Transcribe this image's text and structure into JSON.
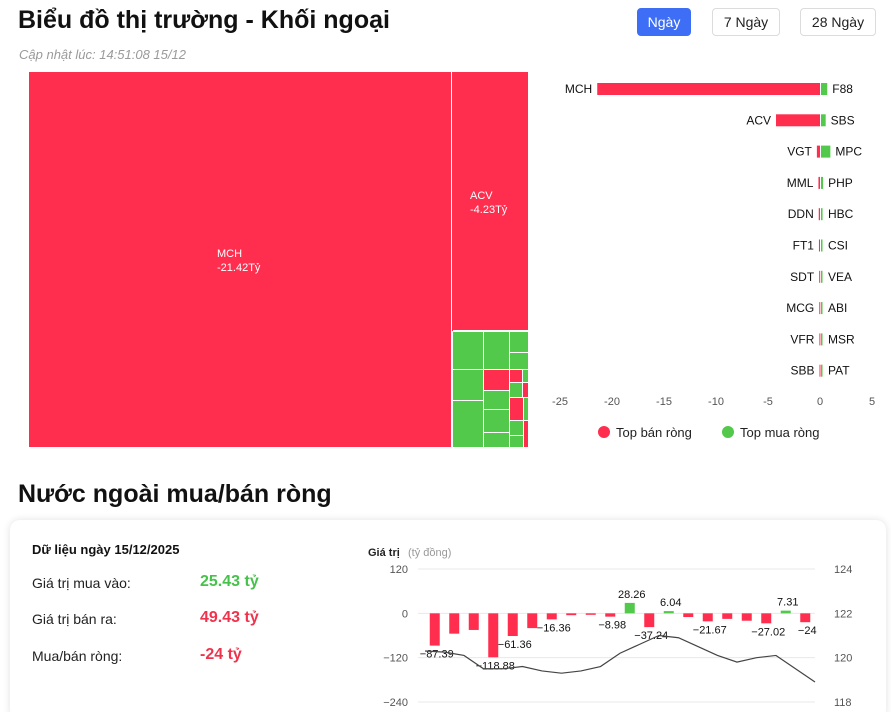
{
  "header": {
    "title": "Biểu đồ thị trường - Khối ngoại",
    "updated": "Cập nhật lúc: 14:51:08 15/12"
  },
  "range_tabs": [
    {
      "label": "Ngày",
      "active": true
    },
    {
      "label": "7 Ngày",
      "active": false
    },
    {
      "label": "28 Ngày",
      "active": false
    }
  ],
  "treemap": {
    "cells": [
      {
        "symbol": "MCH",
        "value": "-21.42Tỷ"
      },
      {
        "symbol": "ACV",
        "value": "-4.23Tỷ"
      }
    ]
  },
  "colors": {
    "sell": "#ff2e4f",
    "buy": "#52c94a",
    "accent": "#3d6ef5"
  },
  "chart_data": [
    {
      "type": "bar",
      "sell_symbols": [
        "MCH",
        "ACV",
        "VGT",
        "MML",
        "DDN",
        "FT1",
        "SDT",
        "MCG",
        "VFR",
        "SBB"
      ],
      "sell_values": [
        -21.42,
        -4.23,
        -0.3,
        -0.15,
        -0.12,
        -0.1,
        -0.08,
        -0.07,
        -0.06,
        -0.05
      ],
      "buy_symbols": [
        "F88",
        "SBS",
        "MPC",
        "PHP",
        "HBC",
        "CSI",
        "VEA",
        "ABI",
        "MSR",
        "PAT"
      ],
      "buy_values": [
        0.6,
        0.45,
        0.9,
        0.2,
        0.15,
        0.12,
        0.1,
        0.08,
        0.06,
        0.05
      ],
      "xticks": [
        "-25",
        "-20",
        "-15",
        "-10",
        "-5",
        "0",
        "5"
      ],
      "xlim": [
        -25,
        5
      ],
      "legend": [
        "Top bán ròng",
        "Top mua ròng"
      ],
      "legend_position": "bottom"
    },
    {
      "type": "bar",
      "ylabel": "Giá trị",
      "yunit": "(tỷ đồng)",
      "left_ticks": [
        "120",
        "0",
        "−120",
        "−240"
      ],
      "right_ticks": [
        "124",
        "122",
        "120",
        "118"
      ],
      "ylim": [
        -240,
        120
      ],
      "right_ylim": [
        118,
        124
      ],
      "values": [
        -87.39,
        -55,
        -45,
        -118.88,
        -61.36,
        -40,
        -16.36,
        -5,
        -4,
        -8.98,
        28.26,
        -37.24,
        6.04,
        -10,
        -21.67,
        -15,
        -20,
        -27.02,
        7.31,
        -24
      ],
      "labels": {
        "0": "−87.39",
        "3": "−118.88",
        "4": "−61.36",
        "6": "−16.36",
        "9": "−8.98",
        "10": "28.26",
        "11": "−37.24",
        "12": "6.04",
        "14": "−21.67",
        "17": "−27.02",
        "18": "7.31",
        "19": "−24"
      },
      "line": [
        120.3,
        120.25,
        120.1,
        119.5,
        119.5,
        119.6,
        119.4,
        119.3,
        119.4,
        119.6,
        120.2,
        120.6,
        121.0,
        120.9,
        120.5,
        120.1,
        119.8,
        120.0,
        120.1,
        119.5,
        118.9
      ]
    }
  ],
  "summary": {
    "title": "Dữ liệu ngày 15/12/2025",
    "rows": [
      {
        "label": "Giá trị mua vào:",
        "value": "25.43 tỷ",
        "tone": "green"
      },
      {
        "label": "Giá trị bán ra:",
        "value": "49.43 tỷ",
        "tone": "red"
      },
      {
        "label": "Mua/bán ròng:",
        "value": "-24 tỷ",
        "tone": "red"
      }
    ]
  },
  "section": {
    "title": "Nước ngoài mua/bán ròng"
  }
}
